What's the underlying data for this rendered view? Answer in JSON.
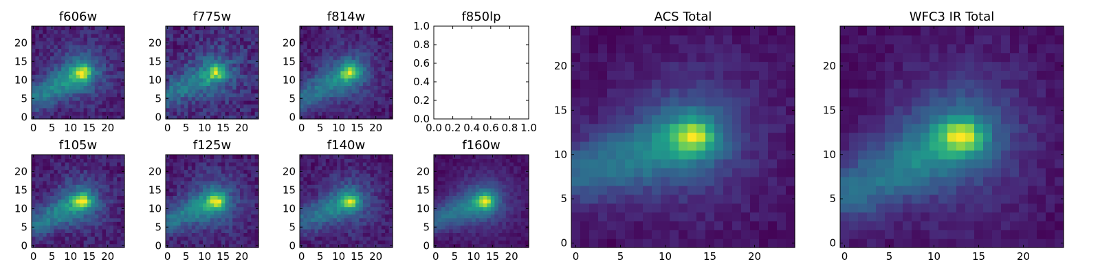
{
  "chart_data": [
    {
      "type": "heatmap",
      "title": "f606w",
      "xticks": [
        0,
        5,
        10,
        15,
        20
      ],
      "yticks": [
        0,
        5,
        10,
        15,
        20
      ],
      "xlim": [
        -0.5,
        24.5
      ],
      "ylim": [
        -0.5,
        24.5
      ],
      "grid_size": 25,
      "blob": {
        "x": 13,
        "y": 12
      },
      "streak": {
        "x": 0,
        "y": 5
      },
      "noise_level": "medium"
    },
    {
      "type": "heatmap",
      "title": "f775w",
      "xticks": [
        0,
        5,
        10,
        15,
        20
      ],
      "yticks": [
        0,
        5,
        10,
        15,
        20
      ],
      "xlim": [
        -0.5,
        24.5
      ],
      "ylim": [
        -0.5,
        24.5
      ],
      "grid_size": 25,
      "blob": {
        "x": 13,
        "y": 12
      },
      "streak": {
        "x": 0,
        "y": 6
      },
      "noise_level": "high"
    },
    {
      "type": "heatmap",
      "title": "f814w",
      "xticks": [
        0,
        5,
        10,
        15,
        20
      ],
      "yticks": [
        0,
        5,
        10,
        15,
        20
      ],
      "xlim": [
        -0.5,
        24.5
      ],
      "ylim": [
        -0.5,
        24.5
      ],
      "grid_size": 25,
      "blob": {
        "x": 13,
        "y": 12
      },
      "streak": {
        "x": 0,
        "y": 5
      },
      "noise_level": "medium"
    },
    {
      "type": "empty",
      "title": "f850lp",
      "xticks": [
        "0.0",
        "0.2",
        "0.4",
        "0.6",
        "0.8",
        "1.0"
      ],
      "yticks": [
        "0.0",
        "0.2",
        "0.4",
        "0.6",
        "0.8",
        "1.0"
      ],
      "xlim": [
        0,
        1
      ],
      "ylim": [
        0,
        1
      ]
    },
    {
      "type": "heatmap",
      "title": "f105w",
      "xticks": [
        0,
        5,
        10,
        15,
        20
      ],
      "yticks": [
        0,
        5,
        10,
        15,
        20
      ],
      "xlim": [
        -0.5,
        24.5
      ],
      "ylim": [
        -0.5,
        24.5
      ],
      "grid_size": 25,
      "blob": {
        "x": 13,
        "y": 12
      },
      "streak": {
        "x": 1,
        "y": 6
      },
      "noise_level": "medium"
    },
    {
      "type": "heatmap",
      "title": "f125w",
      "xticks": [
        0,
        5,
        10,
        15,
        20
      ],
      "yticks": [
        0,
        5,
        10,
        15,
        20
      ],
      "xlim": [
        -0.5,
        24.5
      ],
      "ylim": [
        -0.5,
        24.5
      ],
      "grid_size": 25,
      "blob": {
        "x": 13,
        "y": 12
      },
      "streak": {
        "x": 1,
        "y": 7
      },
      "noise_level": "medium"
    },
    {
      "type": "heatmap",
      "title": "f140w",
      "xticks": [
        0,
        5,
        10,
        15,
        20
      ],
      "yticks": [
        0,
        5,
        10,
        15,
        20
      ],
      "xlim": [
        -0.5,
        24.5
      ],
      "ylim": [
        -0.5,
        24.5
      ],
      "grid_size": 25,
      "blob": {
        "x": 13,
        "y": 12
      },
      "streak": {
        "x": 1,
        "y": 7
      },
      "noise_level": "medium"
    },
    {
      "type": "heatmap",
      "title": "f160w",
      "xticks": [
        0,
        5,
        10,
        15,
        20
      ],
      "yticks": [
        0,
        5,
        10,
        15,
        20
      ],
      "xlim": [
        -0.5,
        24.5
      ],
      "ylim": [
        -0.5,
        24.5
      ],
      "grid_size": 25,
      "blob": {
        "x": 13,
        "y": 12
      },
      "streak": {
        "x": 0,
        "y": 7
      },
      "noise_level": "low"
    },
    {
      "type": "heatmap",
      "title": "ACS Total",
      "xticks": [
        0,
        5,
        10,
        15,
        20
      ],
      "yticks": [
        0,
        5,
        10,
        15,
        20
      ],
      "xlim": [
        -0.5,
        24.5
      ],
      "ylim": [
        -0.5,
        24.5
      ],
      "grid_size": 25,
      "blob": {
        "x": 13,
        "y": 12
      },
      "streak": {
        "x": 1,
        "y": 8
      },
      "noise_level": "low"
    },
    {
      "type": "heatmap",
      "title": "WFC3 IR Total",
      "xticks": [
        0,
        5,
        10,
        15,
        20
      ],
      "yticks": [
        0,
        5,
        10,
        15,
        20
      ],
      "xlim": [
        -0.5,
        24.5
      ],
      "ylim": [
        -0.5,
        24.5
      ],
      "grid_size": 25,
      "blob": {
        "x": 13,
        "y": 12
      },
      "streak": {
        "x": 1,
        "y": 6
      },
      "noise_level": "low"
    }
  ],
  "colormap": "viridis",
  "colors": {
    "low": "#440154",
    "mid": "#21918c",
    "high": "#fde725"
  }
}
